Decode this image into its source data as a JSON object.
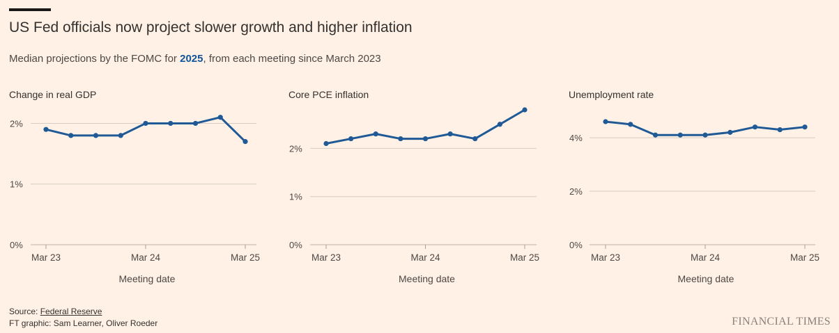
{
  "header": {
    "title": "US Fed officials now project slower growth and higher inflation",
    "subtitle_pre": "Median projections by the FOMC for ",
    "subtitle_highlight": "2025",
    "subtitle_post": ", from each meeting since March 2023"
  },
  "colors": {
    "line": "#1f5a96",
    "grid": "#d6ccc3",
    "text": "#4d4845"
  },
  "chart_data": [
    {
      "type": "line",
      "title": "Change in real GDP",
      "xlabel": "Meeting date",
      "x_ticks": [
        "Mar 23",
        "Mar 24",
        "Mar 25"
      ],
      "y_ticks": [
        {
          "v": 0,
          "label": "0%"
        },
        {
          "v": 1,
          "label": "1%"
        },
        {
          "v": 2,
          "label": "2%"
        }
      ],
      "ylim": [
        0,
        2.2
      ],
      "values": [
        1.9,
        1.8,
        1.8,
        1.8,
        2.0,
        2.0,
        2.0,
        2.1,
        1.7
      ]
    },
    {
      "type": "line",
      "title": "Core PCE inflation",
      "xlabel": "Meeting date",
      "x_ticks": [
        "Mar 23",
        "Mar 24",
        "Mar 25"
      ],
      "y_ticks": [
        {
          "v": 0,
          "label": "0%"
        },
        {
          "v": 1,
          "label": "1%"
        },
        {
          "v": 2,
          "label": "2%"
        }
      ],
      "ylim": [
        0,
        2.8
      ],
      "values": [
        2.1,
        2.2,
        2.3,
        2.2,
        2.2,
        2.3,
        2.2,
        2.5,
        2.8
      ]
    },
    {
      "type": "line",
      "title": "Unemployment rate",
      "xlabel": "Meeting date",
      "x_ticks": [
        "Mar 23",
        "Mar 24",
        "Mar 25"
      ],
      "y_ticks": [
        {
          "v": 0,
          "label": "0%"
        },
        {
          "v": 2,
          "label": "2%"
        },
        {
          "v": 4,
          "label": "4%"
        }
      ],
      "ylim": [
        0,
        4.6
      ],
      "values": [
        4.6,
        4.5,
        4.1,
        4.1,
        4.1,
        4.2,
        4.4,
        4.3,
        4.4
      ]
    }
  ],
  "footer": {
    "source_label": "Source: ",
    "source_link": "Federal Reserve",
    "credit": "FT graphic: Sam Learner, Oliver Roeder",
    "logo": "FINANCIAL TIMES"
  }
}
